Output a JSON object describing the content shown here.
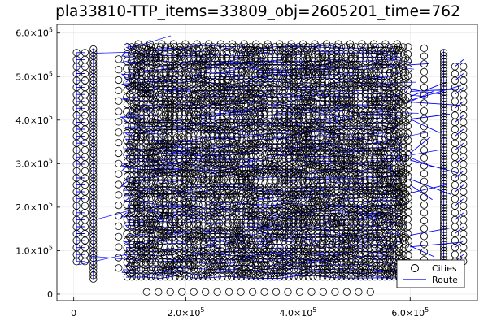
{
  "chart_data": {
    "type": "scatter",
    "title": "pla33810-TTP_items=33809_obj=2605201_time=762",
    "xlabel": "",
    "ylabel": "",
    "xlim": [
      -30000,
      720000
    ],
    "ylim": [
      -15000,
      620000
    ],
    "grid": true,
    "legend_position": "bottom-right",
    "x_ticks": [
      {
        "value": 0,
        "base": "0",
        "exp": ""
      },
      {
        "value": 200000,
        "base": "2.0×10",
        "exp": "5"
      },
      {
        "value": 400000,
        "base": "4.0×10",
        "exp": "5"
      },
      {
        "value": 600000,
        "base": "6.0×10",
        "exp": "5"
      }
    ],
    "y_ticks": [
      {
        "value": 0,
        "base": "0",
        "exp": ""
      },
      {
        "value": 100000,
        "base": "1.0×10",
        "exp": "5"
      },
      {
        "value": 200000,
        "base": "2.0×10",
        "exp": "5"
      },
      {
        "value": 300000,
        "base": "3.0×10",
        "exp": "5"
      },
      {
        "value": 400000,
        "base": "4.0×10",
        "exp": "5"
      },
      {
        "value": 500000,
        "base": "5.0×10",
        "exp": "5"
      },
      {
        "value": 600000,
        "base": "6.0×10",
        "exp": "5"
      }
    ],
    "series": [
      {
        "name": "Cities",
        "marker": "open-circle",
        "color": "#000000",
        "approximate_region_samples": [
          {
            "x": 5000,
            "y": 555000
          },
          {
            "x": 20000,
            "y": 555000
          },
          {
            "x": 5000,
            "y": 75000
          },
          {
            "x": 20000,
            "y": 75000
          },
          {
            "x": 35000,
            "y": 565000
          },
          {
            "x": 35000,
            "y": 35000
          },
          {
            "x": 95000,
            "y": 570000
          },
          {
            "x": 600000,
            "y": 570000
          },
          {
            "x": 95000,
            "y": 40000
          },
          {
            "x": 600000,
            "y": 40000
          },
          {
            "x": 130000,
            "y": 5000
          },
          {
            "x": 530000,
            "y": 5000
          },
          {
            "x": 625000,
            "y": 565000
          },
          {
            "x": 625000,
            "y": 25000
          },
          {
            "x": 660000,
            "y": 560000
          },
          {
            "x": 660000,
            "y": 30000
          },
          {
            "x": 695000,
            "y": 525000
          },
          {
            "x": 695000,
            "y": 75000
          }
        ]
      },
      {
        "name": "Route",
        "marker": "line",
        "color": "#0000ff"
      }
    ]
  }
}
